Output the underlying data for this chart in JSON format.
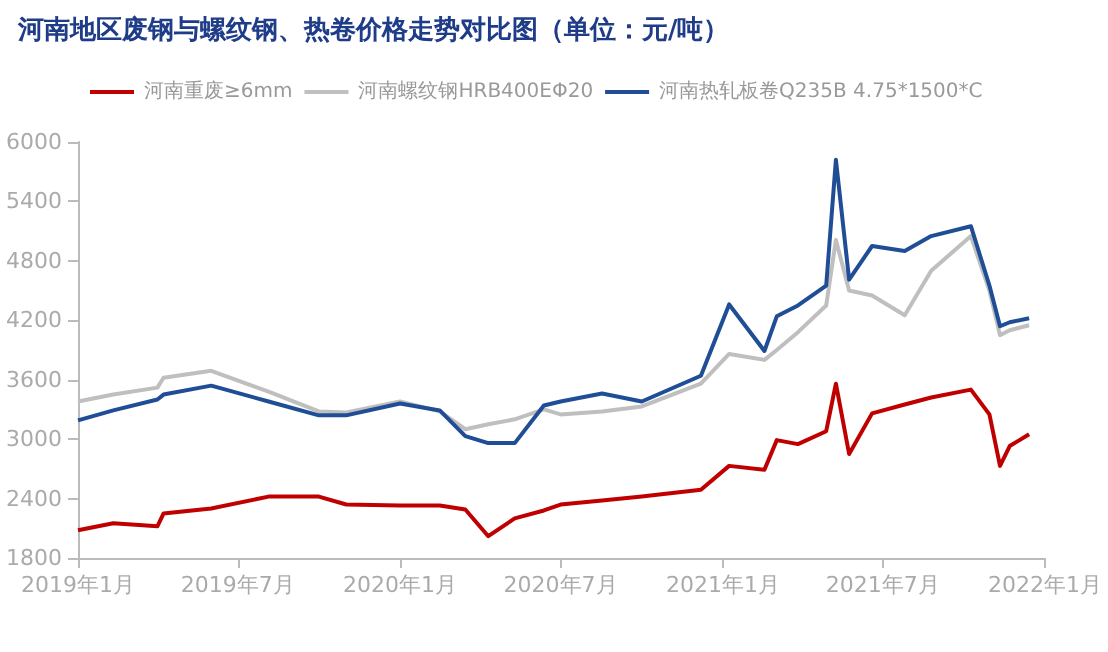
{
  "chart_data": {
    "type": "line",
    "title": "河南地区废钢与螺纹钢、热卷价格走势对比图（单位：元/吨）",
    "x": [
      "2019-01-01",
      "2019-02-10",
      "2019-04-01",
      "2019-04-08",
      "2019-06-01",
      "2019-08-05",
      "2019-10-01",
      "2019-11-01",
      "2020-01-01",
      "2020-02-15",
      "2020-03-15",
      "2020-04-10",
      "2020-05-10",
      "2020-06-12",
      "2020-07-01",
      "2020-08-17",
      "2020-10-01",
      "2020-12-07",
      "2021-01-08",
      "2021-02-17",
      "2021-03-03",
      "2021-03-27",
      "2021-04-28",
      "2021-05-09",
      "2021-05-24",
      "2021-06-19",
      "2021-07-26",
      "2021-08-25",
      "2021-10-09",
      "2021-10-30",
      "2021-11-11",
      "2021-11-22",
      "2021-12-14"
    ],
    "series": [
      {
        "name": "河南重废≥6mm",
        "color": "#c00000",
        "values": [
          2080,
          2150,
          2120,
          2250,
          2300,
          2420,
          2420,
          2340,
          2330,
          2330,
          2290,
          2020,
          2200,
          2280,
          2340,
          2380,
          2420,
          2490,
          2730,
          2690,
          2990,
          2950,
          3080,
          3560,
          2850,
          3260,
          3350,
          3420,
          3500,
          3250,
          2730,
          2930,
          3050
        ]
      },
      {
        "name": "河南螺纹钢HRB400EΦ20",
        "color": "#bfbfbf",
        "values": [
          3380,
          3450,
          3520,
          3620,
          3690,
          3480,
          3280,
          3270,
          3380,
          3280,
          3100,
          3150,
          3200,
          3300,
          3250,
          3280,
          3330,
          3560,
          3860,
          3800,
          3900,
          4080,
          4350,
          5010,
          4500,
          4450,
          4250,
          4700,
          5050,
          4500,
          4050,
          4100,
          4150
        ]
      },
      {
        "name": "河南热轧板卷Q235B 4.75*1500*C",
        "color": "#1f4e96",
        "values": [
          3190,
          3290,
          3400,
          3450,
          3540,
          3380,
          3240,
          3240,
          3360,
          3290,
          3030,
          2960,
          2960,
          3340,
          3380,
          3460,
          3380,
          3640,
          4360,
          3890,
          4240,
          4350,
          4550,
          5820,
          4610,
          4950,
          4900,
          5050,
          5150,
          4550,
          4140,
          4180,
          4220
        ]
      }
    ],
    "xlim": [
      "2019-01-01",
      "2022-01-01"
    ],
    "xticks": [
      {
        "value": "2019-01-01",
        "label": "2019年1月"
      },
      {
        "value": "2019-07-01",
        "label": "2019年7月"
      },
      {
        "value": "2020-01-01",
        "label": "2020年1月"
      },
      {
        "value": "2020-07-01",
        "label": "2020年7月"
      },
      {
        "value": "2021-01-01",
        "label": "2021年1月"
      },
      {
        "value": "2021-07-01",
        "label": "2021年7月"
      },
      {
        "value": "2022-01-01",
        "label": "2022年1月"
      }
    ],
    "ylim": [
      1800,
      6000
    ],
    "yticks": [
      1800,
      2400,
      3000,
      3600,
      4200,
      4800,
      5400,
      6000
    ],
    "grid": false,
    "legend": "top",
    "marker": "none",
    "line_style": "solid"
  }
}
